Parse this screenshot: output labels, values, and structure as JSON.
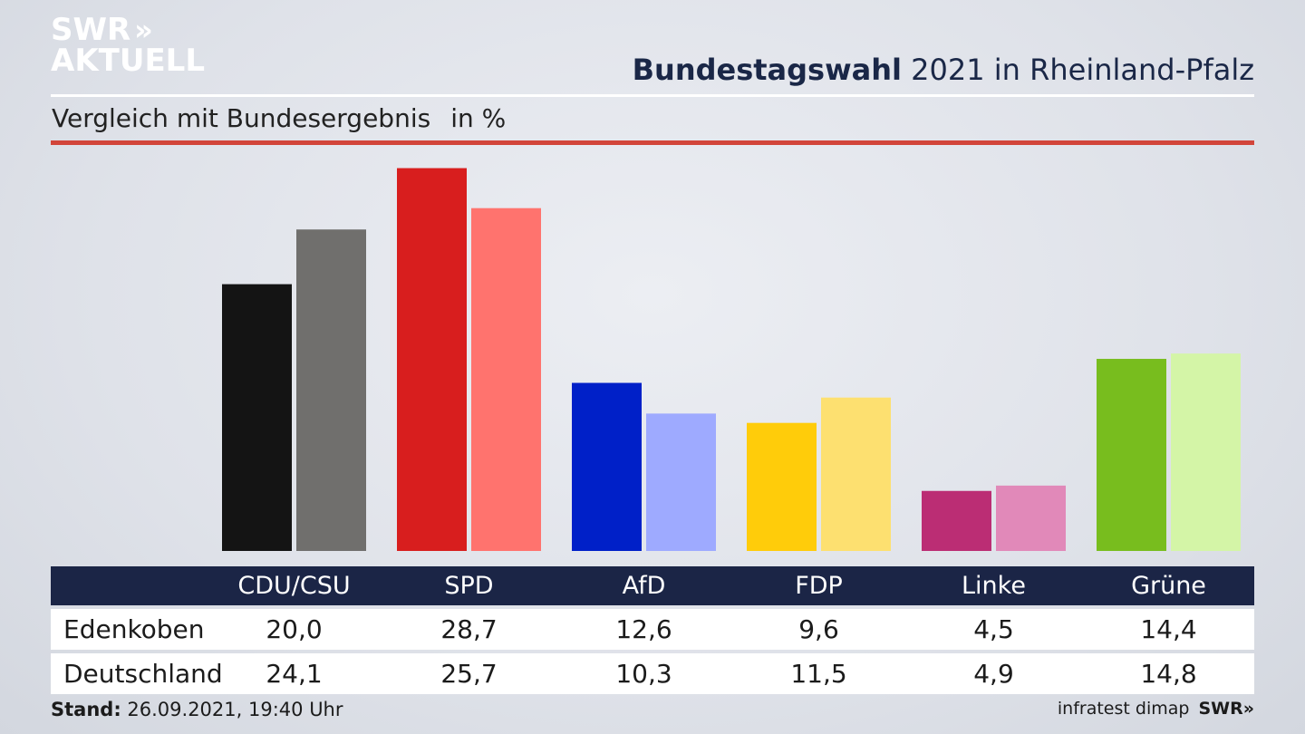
{
  "branding": {
    "logo_line1": "SWR",
    "logo_line2": "AKTUELL",
    "footer_source": "infratest dimap",
    "footer_logo": "SWR"
  },
  "header": {
    "title_bold": "Bundestagswahl",
    "title_rest": " 2021 in Rheinland-Pfalz",
    "subtitle": "Vergleich mit Bundesergebnis",
    "unit": "in %"
  },
  "footer": {
    "stand_label": "Stand:",
    "stand_value": "26.09.2021, 19:40 Uhr"
  },
  "chart_data": {
    "type": "bar",
    "categories": [
      "CDU/CSU",
      "SPD",
      "AfD",
      "FDP",
      "Linke",
      "Grüne"
    ],
    "series": [
      {
        "name": "Edenkoben",
        "values": [
          20.0,
          28.7,
          12.6,
          9.6,
          4.5,
          14.4
        ],
        "display": [
          "20,0",
          "28,7",
          "12,6",
          "9,6",
          "4,5",
          "14,4"
        ]
      },
      {
        "name": "Deutschland",
        "values": [
          24.1,
          25.7,
          10.3,
          11.5,
          4.9,
          14.8
        ],
        "display": [
          "24,1",
          "25,7",
          "10,3",
          "11,5",
          "4,9",
          "14,8"
        ]
      }
    ],
    "colors": [
      [
        "#141414",
        "#706f6d"
      ],
      [
        "#d81e1e",
        "#ff736e"
      ],
      [
        "#0020c8",
        "#9eaaff"
      ],
      [
        "#ffcc0a",
        "#fde070"
      ],
      [
        "#bb2d74",
        "#e189b9"
      ],
      [
        "#78bd1e",
        "#d4f5a7"
      ]
    ],
    "ylim": [
      0,
      30
    ],
    "grid": false,
    "legend": "table-below"
  }
}
